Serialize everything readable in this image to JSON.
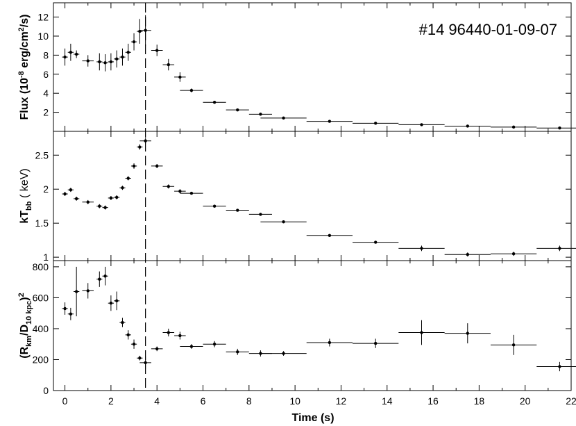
{
  "chart_data": {
    "type": "scatter",
    "annotation": "#14 96440-01-09-07",
    "xlabel": "Time (s)",
    "xlim": [
      -0.5,
      22
    ],
    "xticks": [
      0,
      2,
      4,
      6,
      8,
      10,
      12,
      14,
      16,
      18,
      20,
      22
    ],
    "vline_x": 3.5,
    "panels": [
      {
        "id": "flux",
        "ylabel_parts": [
          "Flux (10",
          "-8",
          " erg/cm",
          "2",
          "/s)"
        ],
        "ylim": [
          0,
          13.5
        ],
        "yticks": [
          2,
          4,
          6,
          8,
          10,
          12
        ],
        "points": [
          {
            "x": 0.0,
            "xerr": 0.125,
            "y": 7.8,
            "yerr": 0.9
          },
          {
            "x": 0.25,
            "xerr": 0.125,
            "y": 8.3,
            "yerr": 0.9
          },
          {
            "x": 0.5,
            "xerr": 0.125,
            "y": 8.1,
            "yerr": 0.4
          },
          {
            "x": 1.0,
            "xerr": 0.25,
            "y": 7.4,
            "yerr": 0.6
          },
          {
            "x": 1.5,
            "xerr": 0.125,
            "y": 7.3,
            "yerr": 0.9
          },
          {
            "x": 1.75,
            "xerr": 0.125,
            "y": 7.2,
            "yerr": 0.9
          },
          {
            "x": 2.0,
            "xerr": 0.125,
            "y": 7.3,
            "yerr": 0.9
          },
          {
            "x": 2.25,
            "xerr": 0.125,
            "y": 7.6,
            "yerr": 0.9
          },
          {
            "x": 2.5,
            "xerr": 0.125,
            "y": 7.8,
            "yerr": 0.9
          },
          {
            "x": 2.75,
            "xerr": 0.125,
            "y": 8.3,
            "yerr": 0.9
          },
          {
            "x": 3.0,
            "xerr": 0.125,
            "y": 9.4,
            "yerr": 0.9
          },
          {
            "x": 3.25,
            "xerr": 0.125,
            "y": 10.5,
            "yerr": 1.3
          },
          {
            "x": 3.5,
            "xerr": 0.25,
            "y": 10.6,
            "yerr": 1.6
          },
          {
            "x": 4.0,
            "xerr": 0.25,
            "y": 8.5,
            "yerr": 0.6
          },
          {
            "x": 4.5,
            "xerr": 0.25,
            "y": 7.0,
            "yerr": 0.6
          },
          {
            "x": 5.0,
            "xerr": 0.25,
            "y": 5.7,
            "yerr": 0.5
          },
          {
            "x": 5.5,
            "xerr": 0.5,
            "y": 4.3,
            "yerr": 0.2
          },
          {
            "x": 6.5,
            "xerr": 0.5,
            "y": 3.05,
            "yerr": 0.15
          },
          {
            "x": 7.5,
            "xerr": 0.5,
            "y": 2.25,
            "yerr": 0.1
          },
          {
            "x": 8.5,
            "xerr": 0.5,
            "y": 1.8,
            "yerr": 0.1
          },
          {
            "x": 9.5,
            "xerr": 1.0,
            "y": 1.4,
            "yerr": 0.05
          },
          {
            "x": 11.5,
            "xerr": 1.0,
            "y": 1.05,
            "yerr": 0.05
          },
          {
            "x": 13.5,
            "xerr": 1.0,
            "y": 0.85,
            "yerr": 0.05
          },
          {
            "x": 15.5,
            "xerr": 1.0,
            "y": 0.7,
            "yerr": 0.05
          },
          {
            "x": 17.5,
            "xerr": 1.0,
            "y": 0.55,
            "yerr": 0.05
          },
          {
            "x": 19.5,
            "xerr": 1.0,
            "y": 0.45,
            "yerr": 0.05
          },
          {
            "x": 21.5,
            "xerr": 1.0,
            "y": 0.35,
            "yerr": 0.05
          }
        ]
      },
      {
        "id": "ktbb",
        "ylabel_parts": [
          "kT",
          "bb",
          " ( keV)"
        ],
        "ylim": [
          0.95,
          2.85
        ],
        "yticks": [
          1,
          1.5,
          2,
          2.5
        ],
        "yticklabels": [
          "1",
          "1.5",
          "2",
          "2.5"
        ],
        "points": [
          {
            "x": 0.0,
            "xerr": 0.125,
            "y": 1.93,
            "yerr": 0.03
          },
          {
            "x": 0.25,
            "xerr": 0.125,
            "y": 1.99,
            "yerr": 0.03
          },
          {
            "x": 0.5,
            "xerr": 0.125,
            "y": 1.86,
            "yerr": 0.03
          },
          {
            "x": 1.0,
            "xerr": 0.25,
            "y": 1.81,
            "yerr": 0.03
          },
          {
            "x": 1.5,
            "xerr": 0.125,
            "y": 1.75,
            "yerr": 0.03
          },
          {
            "x": 1.75,
            "xerr": 0.125,
            "y": 1.73,
            "yerr": 0.03
          },
          {
            "x": 2.0,
            "xerr": 0.125,
            "y": 1.87,
            "yerr": 0.03
          },
          {
            "x": 2.25,
            "xerr": 0.125,
            "y": 1.88,
            "yerr": 0.03
          },
          {
            "x": 2.5,
            "xerr": 0.125,
            "y": 2.02,
            "yerr": 0.03
          },
          {
            "x": 2.75,
            "xerr": 0.125,
            "y": 2.16,
            "yerr": 0.03
          },
          {
            "x": 3.0,
            "xerr": 0.125,
            "y": 2.34,
            "yerr": 0.04
          },
          {
            "x": 3.25,
            "xerr": 0.125,
            "y": 2.62,
            "yerr": 0.04
          },
          {
            "x": 3.5,
            "xerr": 0.25,
            "y": 2.71,
            "yerr": 0.04
          },
          {
            "x": 4.0,
            "xerr": 0.25,
            "y": 2.34,
            "yerr": 0.03
          },
          {
            "x": 4.5,
            "xerr": 0.25,
            "y": 2.04,
            "yerr": 0.03
          },
          {
            "x": 5.0,
            "xerr": 0.25,
            "y": 1.97,
            "yerr": 0.03
          },
          {
            "x": 5.5,
            "xerr": 0.5,
            "y": 1.94,
            "yerr": 0.02
          },
          {
            "x": 6.5,
            "xerr": 0.5,
            "y": 1.75,
            "yerr": 0.02
          },
          {
            "x": 7.5,
            "xerr": 0.5,
            "y": 1.69,
            "yerr": 0.02
          },
          {
            "x": 8.5,
            "xerr": 0.5,
            "y": 1.63,
            "yerr": 0.02
          },
          {
            "x": 9.5,
            "xerr": 1.0,
            "y": 1.52,
            "yerr": 0.02
          },
          {
            "x": 11.5,
            "xerr": 1.0,
            "y": 1.32,
            "yerr": 0.02
          },
          {
            "x": 13.5,
            "xerr": 1.0,
            "y": 1.22,
            "yerr": 0.02
          },
          {
            "x": 15.5,
            "xerr": 1.0,
            "y": 1.13,
            "yerr": 0.04
          },
          {
            "x": 17.5,
            "xerr": 1.0,
            "y": 1.04,
            "yerr": 0.03
          },
          {
            "x": 19.5,
            "xerr": 1.0,
            "y": 1.05,
            "yerr": 0.03
          },
          {
            "x": 21.5,
            "xerr": 1.0,
            "y": 1.13,
            "yerr": 0.04
          }
        ]
      },
      {
        "id": "radius",
        "ylabel_parts": [
          "(R",
          "km",
          "/D",
          "10 kpc",
          ")",
          "2"
        ],
        "ylim": [
          0,
          840
        ],
        "yticks": [
          0,
          200,
          400,
          600,
          800
        ],
        "points": [
          {
            "x": 0.0,
            "xerr": 0.125,
            "y": 530,
            "yerr": 40
          },
          {
            "x": 0.25,
            "xerr": 0.125,
            "y": 495,
            "yerr": 40
          },
          {
            "x": 0.5,
            "xerr": 0.125,
            "y": 640,
            "yerr": 160
          },
          {
            "x": 1.0,
            "xerr": 0.25,
            "y": 645,
            "yerr": 50
          },
          {
            "x": 1.5,
            "xerr": 0.125,
            "y": 720,
            "yerr": 50
          },
          {
            "x": 1.75,
            "xerr": 0.125,
            "y": 740,
            "yerr": 60
          },
          {
            "x": 2.0,
            "xerr": 0.125,
            "y": 565,
            "yerr": 50
          },
          {
            "x": 2.25,
            "xerr": 0.125,
            "y": 580,
            "yerr": 60
          },
          {
            "x": 2.5,
            "xerr": 0.125,
            "y": 440,
            "yerr": 30
          },
          {
            "x": 2.75,
            "xerr": 0.125,
            "y": 360,
            "yerr": 30
          },
          {
            "x": 3.0,
            "xerr": 0.125,
            "y": 300,
            "yerr": 30
          },
          {
            "x": 3.25,
            "xerr": 0.125,
            "y": 210,
            "yerr": 15
          },
          {
            "x": 3.5,
            "xerr": 0.25,
            "y": 180,
            "yerr": 40
          },
          {
            "x": 4.0,
            "xerr": 0.25,
            "y": 270,
            "yerr": 15
          },
          {
            "x": 4.5,
            "xerr": 0.25,
            "y": 375,
            "yerr": 25
          },
          {
            "x": 5.0,
            "xerr": 0.25,
            "y": 355,
            "yerr": 25
          },
          {
            "x": 5.5,
            "xerr": 0.5,
            "y": 285,
            "yerr": 15
          },
          {
            "x": 6.5,
            "xerr": 0.5,
            "y": 300,
            "yerr": 20
          },
          {
            "x": 7.5,
            "xerr": 0.5,
            "y": 250,
            "yerr": 20
          },
          {
            "x": 8.5,
            "xerr": 0.5,
            "y": 240,
            "yerr": 20
          },
          {
            "x": 9.5,
            "xerr": 1.0,
            "y": 240,
            "yerr": 15
          },
          {
            "x": 11.5,
            "xerr": 1.0,
            "y": 310,
            "yerr": 25
          },
          {
            "x": 13.5,
            "xerr": 1.0,
            "y": 305,
            "yerr": 30
          },
          {
            "x": 15.5,
            "xerr": 1.0,
            "y": 375,
            "yerr": 80
          },
          {
            "x": 17.5,
            "xerr": 1.0,
            "y": 370,
            "yerr": 65
          },
          {
            "x": 19.5,
            "xerr": 1.0,
            "y": 295,
            "yerr": 65
          },
          {
            "x": 21.5,
            "xerr": 1.0,
            "y": 155,
            "yerr": 30
          }
        ]
      }
    ]
  }
}
